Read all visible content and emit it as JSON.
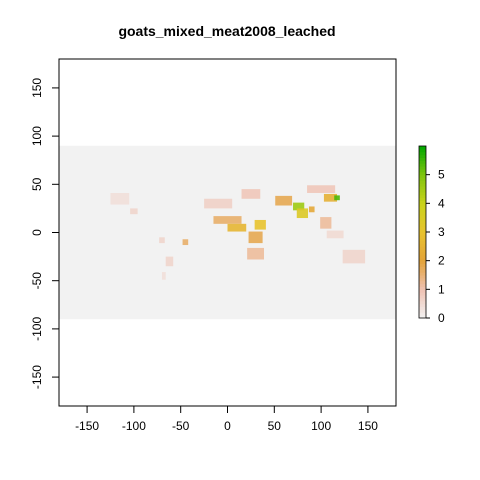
{
  "chart_data": {
    "type": "heatmap",
    "title": "goats_mixed_meat2008_leached",
    "xlabel": "",
    "ylabel": "",
    "xlim": [
      -180,
      180
    ],
    "ylim": [
      -180,
      180
    ],
    "raster_extent": {
      "x": [
        -180,
        180
      ],
      "y": [
        -90,
        90
      ]
    },
    "x_ticks": [
      -150,
      -100,
      -50,
      0,
      50,
      100,
      150
    ],
    "x_tick_labels": [
      "-150",
      "-100",
      "-50",
      "0",
      "50",
      "100",
      "150"
    ],
    "y_ticks": [
      -150,
      -100,
      -50,
      0,
      50,
      100,
      150
    ],
    "y_tick_labels": [
      "-150",
      "-100",
      "-50",
      "0",
      "50",
      "100",
      "150"
    ],
    "grid": false,
    "background_value_color": "#f2f2f2",
    "legend": {
      "placement": "right",
      "min": 0,
      "max": 6,
      "ticks": [
        0,
        1,
        2,
        3,
        4,
        5
      ],
      "tick_labels": [
        "0",
        "1",
        "2",
        "3",
        "4",
        "5"
      ],
      "color_stops": [
        {
          "value": 0,
          "color": "#f2f2f2"
        },
        {
          "value": 1,
          "color": "#efc2b3"
        },
        {
          "value": 2,
          "color": "#e3a33a"
        },
        {
          "value": 3,
          "color": "#e8c32e"
        },
        {
          "value": 4,
          "color": "#c9d31b"
        },
        {
          "value": 5,
          "color": "#7fc40e"
        },
        {
          "value": 6,
          "color": "#00a600"
        }
      ]
    },
    "cells": [
      {
        "lon": -115,
        "lat": 35,
        "w": 20,
        "h": 12,
        "value": 0.4
      },
      {
        "lon": -100,
        "lat": 22,
        "w": 8,
        "h": 6,
        "value": 0.6
      },
      {
        "lon": -70,
        "lat": -8,
        "w": 6,
        "h": 6,
        "value": 0.6
      },
      {
        "lon": -45,
        "lat": -10,
        "w": 6,
        "h": 6,
        "value": 1.6
      },
      {
        "lon": -62,
        "lat": -30,
        "w": 8,
        "h": 10,
        "value": 0.6
      },
      {
        "lon": -68,
        "lat": -45,
        "w": 4,
        "h": 8,
        "value": 0.4
      },
      {
        "lon": -10,
        "lat": 30,
        "w": 30,
        "h": 10,
        "value": 0.7
      },
      {
        "lon": 0,
        "lat": 13,
        "w": 30,
        "h": 8,
        "value": 1.6
      },
      {
        "lon": 10,
        "lat": 5,
        "w": 20,
        "h": 8,
        "value": 2.6
      },
      {
        "lon": 35,
        "lat": 8,
        "w": 12,
        "h": 10,
        "value": 3.0
      },
      {
        "lon": 30,
        "lat": -5,
        "w": 15,
        "h": 12,
        "value": 1.8
      },
      {
        "lon": 30,
        "lat": -22,
        "w": 18,
        "h": 12,
        "value": 1.2
      },
      {
        "lon": 25,
        "lat": 40,
        "w": 20,
        "h": 10,
        "value": 0.9
      },
      {
        "lon": 60,
        "lat": 33,
        "w": 18,
        "h": 10,
        "value": 1.8
      },
      {
        "lon": 76,
        "lat": 27,
        "w": 12,
        "h": 8,
        "value": 4.6
      },
      {
        "lon": 80,
        "lat": 20,
        "w": 12,
        "h": 10,
        "value": 3.4
      },
      {
        "lon": 90,
        "lat": 24,
        "w": 6,
        "h": 6,
        "value": 2.2
      },
      {
        "lon": 110,
        "lat": 36,
        "w": 14,
        "h": 8,
        "value": 2.4
      },
      {
        "lon": 117,
        "lat": 36,
        "w": 6,
        "h": 5,
        "value": 5.4
      },
      {
        "lon": 100,
        "lat": 45,
        "w": 30,
        "h": 8,
        "value": 0.9
      },
      {
        "lon": 105,
        "lat": 10,
        "w": 12,
        "h": 12,
        "value": 1.2
      },
      {
        "lon": 115,
        "lat": -2,
        "w": 18,
        "h": 8,
        "value": 0.5
      },
      {
        "lon": 135,
        "lat": -25,
        "w": 24,
        "h": 14,
        "value": 0.6
      }
    ]
  }
}
